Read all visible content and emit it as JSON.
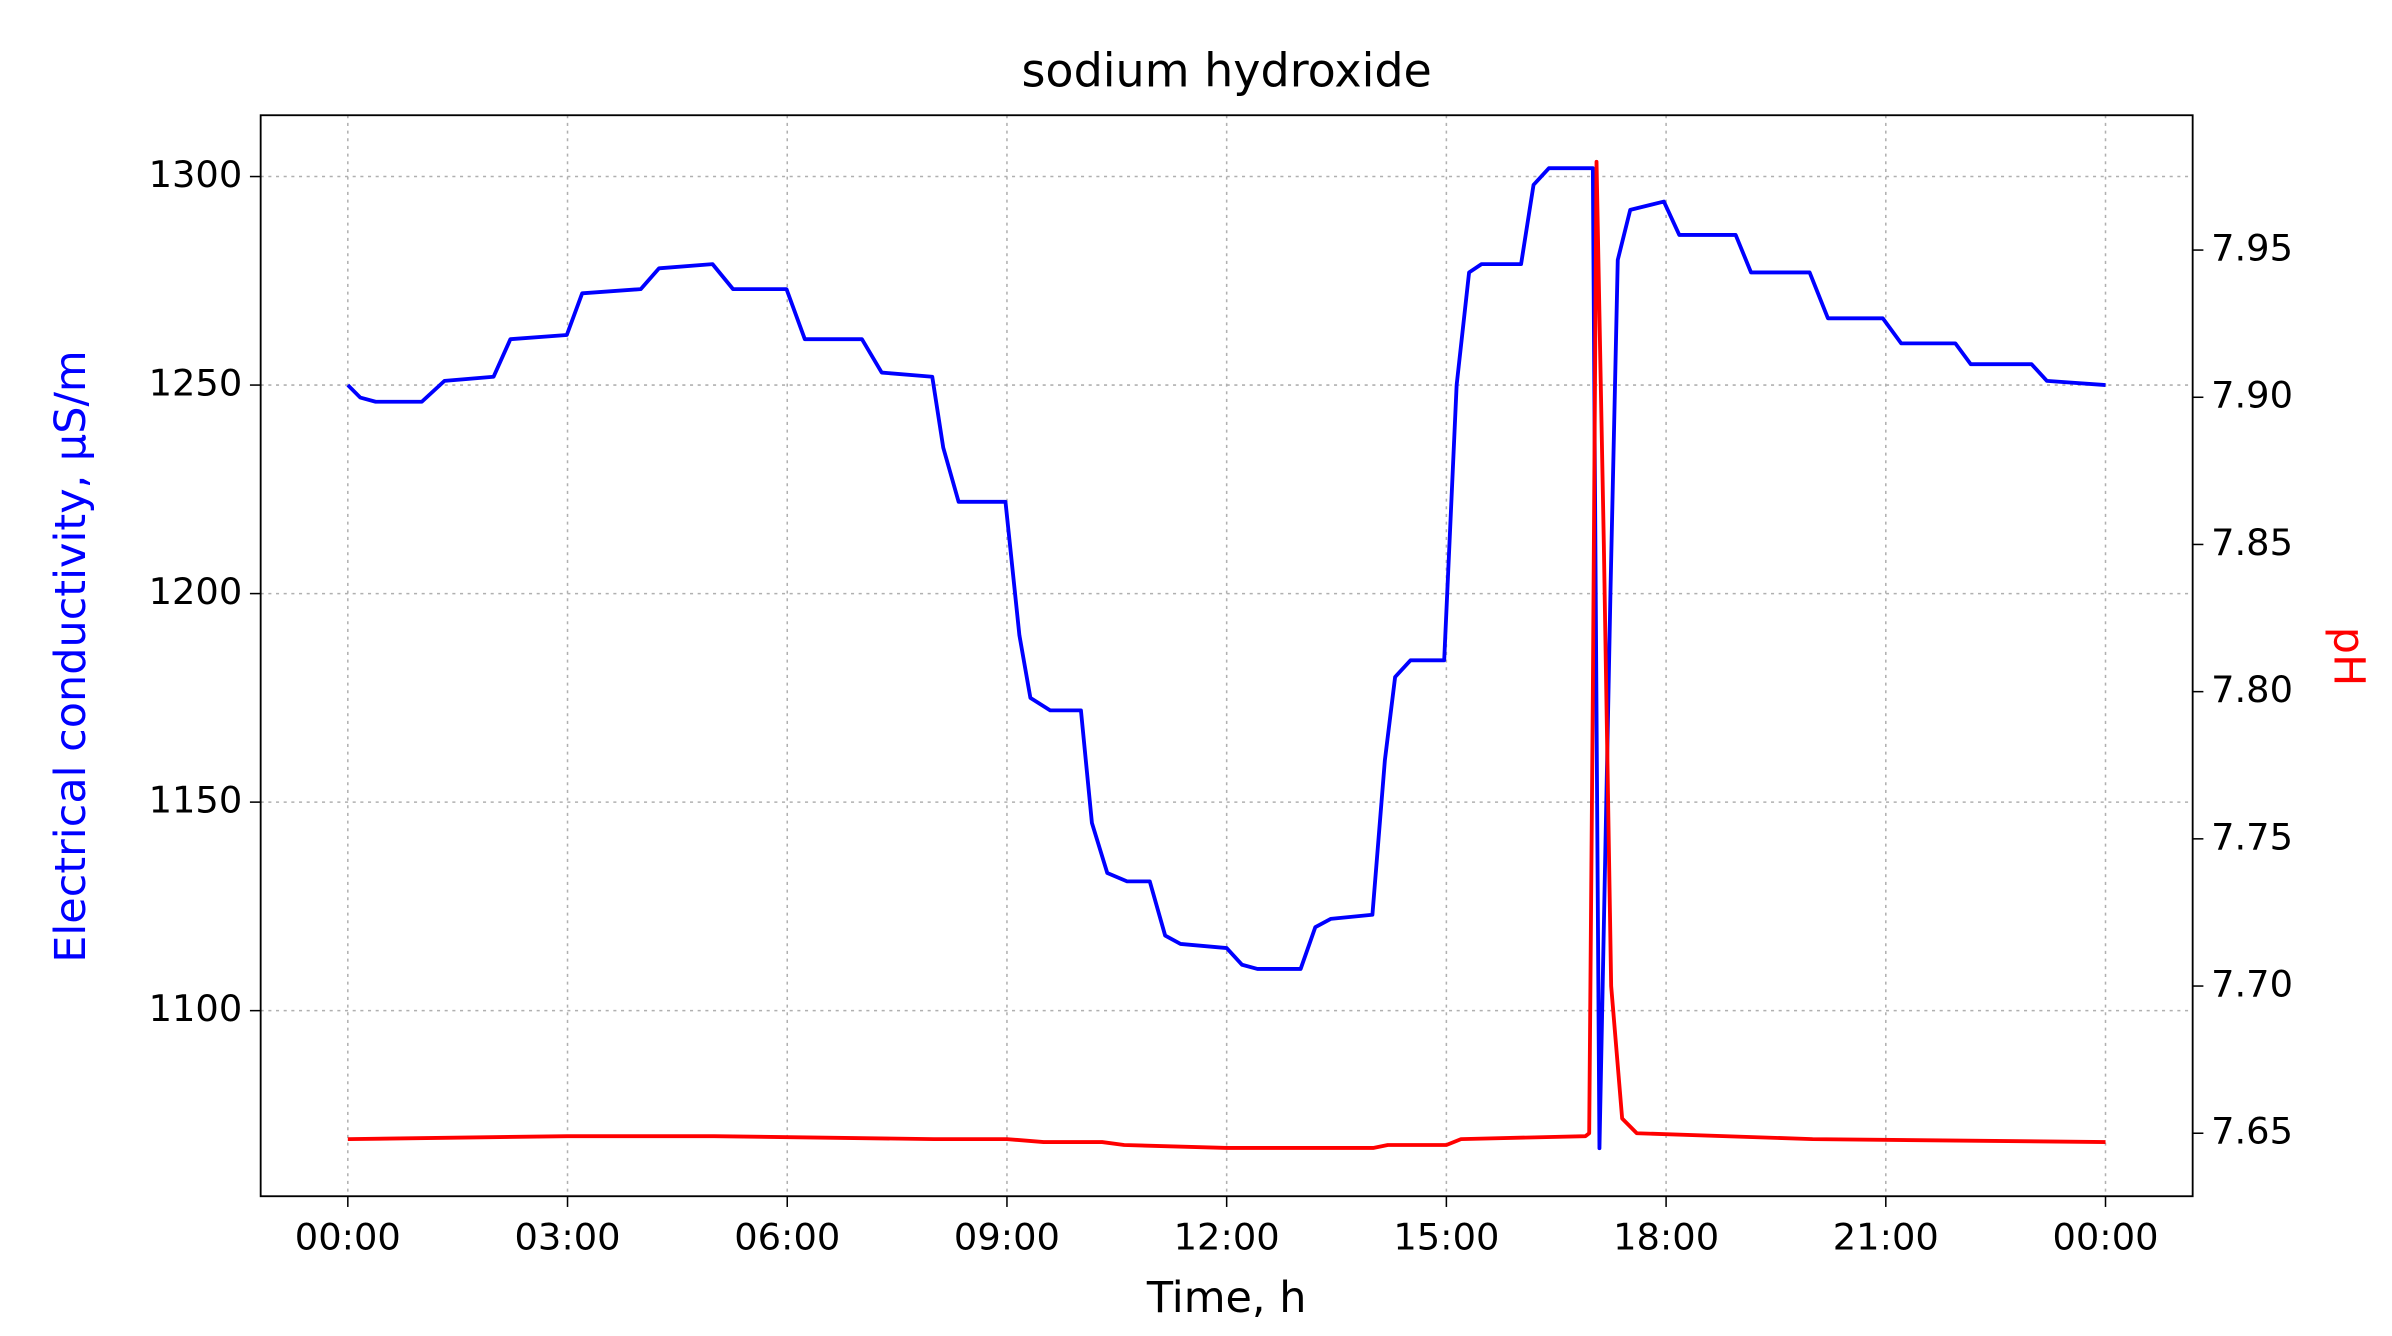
{
  "chart_data": {
    "type": "line",
    "title": "sodium hydroxide",
    "x_label": "Time, h",
    "y_label": "Electrical conductivity, µS/m",
    "y2_label": "pH",
    "y_label_color": "#0000ff",
    "y2_label_color": "#ff0000",
    "grid": true,
    "xlim": [
      -1.19,
      25.19
    ],
    "xticks": [
      {
        "value": 0,
        "label": "00:00"
      },
      {
        "value": 3,
        "label": "03:00"
      },
      {
        "value": 6,
        "label": "06:00"
      },
      {
        "value": 9,
        "label": "09:00"
      },
      {
        "value": 12,
        "label": "12:00"
      },
      {
        "value": 15,
        "label": "15:00"
      },
      {
        "value": 18,
        "label": "18:00"
      },
      {
        "value": 21,
        "label": "21:00"
      },
      {
        "value": 24,
        "label": "00:00"
      }
    ],
    "ylim": [
      1055.5,
      1314.7
    ],
    "yticks": [
      1100,
      1150,
      1200,
      1250,
      1300
    ],
    "y2lim": [
      7.6286,
      7.9958
    ],
    "y2ticks": [
      7.65,
      {
        "value": 7.7,
        "label": "7.70"
      },
      7.75,
      {
        "value": 7.8,
        "label": "7.80"
      },
      7.85,
      {
        "value": 7.9,
        "label": "7.90"
      },
      7.95
    ],
    "series": [
      {
        "name": "Electrical conductivity",
        "color": "#0000ff",
        "axis": "y",
        "x": [
          0,
          0.17,
          0.38,
          1.01,
          1.32,
          1.99,
          2.22,
          2.99,
          3.2,
          4.0,
          4.25,
          4.98,
          5.26,
          5.99,
          6.24,
          7.02,
          7.29,
          7.98,
          8.13,
          8.34,
          8.98,
          9.17,
          9.32,
          9.59,
          10.01,
          10.16,
          10.37,
          10.64,
          10.95,
          11.16,
          11.37,
          12.0,
          12.21,
          12.42,
          13.01,
          13.21,
          13.42,
          13.99,
          14.16,
          14.3,
          14.51,
          14.97,
          15.14,
          15.31,
          15.48,
          16.02,
          16.19,
          16.4,
          17.0,
          17.09,
          17.24,
          17.34,
          17.51,
          17.97,
          18.18,
          18.95,
          19.16,
          19.96,
          20.21,
          20.96,
          21.21,
          21.95,
          22.16,
          22.99,
          23.2,
          24.0
        ],
        "values": [
          1250,
          1247,
          1246,
          1246,
          1251,
          1252,
          1261,
          1262,
          1272,
          1273,
          1278,
          1279,
          1273,
          1273,
          1261,
          1261,
          1253,
          1252,
          1235,
          1222,
          1222,
          1190,
          1175,
          1172,
          1172,
          1145,
          1133,
          1131,
          1131,
          1118,
          1116,
          1115,
          1111,
          1110,
          1110,
          1120,
          1122,
          1123,
          1160,
          1180,
          1184,
          1184,
          1250,
          1277,
          1279,
          1279,
          1298,
          1302,
          1302,
          1067,
          1200,
          1280,
          1292,
          1294,
          1286,
          1286,
          1277,
          1277,
          1266,
          1266,
          1260,
          1260,
          1255,
          1255,
          1251,
          1250
        ]
      },
      {
        "name": "pH",
        "color": "#ff0000",
        "axis": "y2",
        "x": [
          0,
          3,
          5,
          8,
          9,
          9.5,
          10.3,
          10.6,
          12,
          14,
          14.2,
          15.0,
          15.2,
          16.9,
          16.95,
          17.0,
          17.05,
          17.15,
          17.25,
          17.4,
          17.6,
          20,
          24
        ],
        "values": [
          7.648,
          7.649,
          7.649,
          7.648,
          7.648,
          7.647,
          7.647,
          7.646,
          7.645,
          7.645,
          7.646,
          7.646,
          7.648,
          7.649,
          7.65,
          7.8,
          7.98,
          7.85,
          7.7,
          7.655,
          7.65,
          7.648,
          7.647
        ]
      }
    ]
  }
}
